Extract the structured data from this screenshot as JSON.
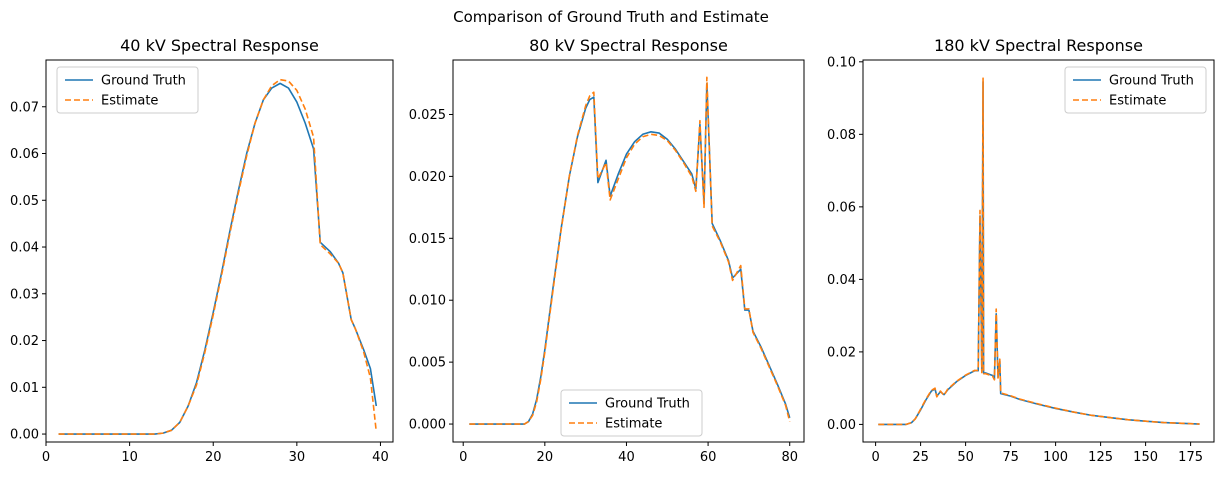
{
  "figure": {
    "suptitle": "Comparison of Ground Truth and Estimate"
  },
  "colors": {
    "ground_truth": "#1f77b4",
    "estimate": "#ff7f0e"
  },
  "chart_data": [
    {
      "type": "line",
      "title": "40 kV Spectral Response",
      "xlabel": "",
      "ylabel": "",
      "xlim": [
        0,
        41.5
      ],
      "ylim": [
        -0.0017,
        0.08
      ],
      "xticks": [
        0,
        10,
        20,
        30,
        40
      ],
      "yticks": [
        0.0,
        0.01,
        0.02,
        0.03,
        0.04,
        0.05,
        0.06,
        0.07
      ],
      "ytick_labels": [
        "0.00",
        "0.01",
        "0.02",
        "0.03",
        "0.04",
        "0.05",
        "0.06",
        "0.07"
      ],
      "grid": false,
      "legend": {
        "position": "top-left",
        "entries": [
          "Ground Truth",
          "Estimate"
        ]
      },
      "series": [
        {
          "name": "Ground Truth",
          "style": "solid",
          "points": [
            [
              1.5,
              0
            ],
            [
              5,
              0
            ],
            [
              10,
              0
            ],
            [
              13,
              0
            ],
            [
              14,
              0.0002
            ],
            [
              15,
              0.0008
            ],
            [
              16,
              0.0025
            ],
            [
              17,
              0.006
            ],
            [
              18,
              0.011
            ],
            [
              19,
              0.018
            ],
            [
              20,
              0.026
            ],
            [
              21,
              0.0345
            ],
            [
              22,
              0.0435
            ],
            [
              23,
              0.052
            ],
            [
              24,
              0.06
            ],
            [
              25,
              0.0665
            ],
            [
              26,
              0.0715
            ],
            [
              27,
              0.074
            ],
            [
              28,
              0.075
            ],
            [
              29,
              0.074
            ],
            [
              30,
              0.071
            ],
            [
              31,
              0.0665
            ],
            [
              32,
              0.061
            ],
            [
              32.8,
              0.041
            ],
            [
              34,
              0.039
            ],
            [
              35,
              0.0365
            ],
            [
              35.5,
              0.0345
            ],
            [
              36.5,
              0.0245
            ],
            [
              37,
              0.0225
            ],
            [
              38,
              0.018
            ],
            [
              38.8,
              0.014
            ],
            [
              39.5,
              0.006
            ]
          ]
        },
        {
          "name": "Estimate",
          "style": "dashed",
          "points": [
            [
              1.5,
              0
            ],
            [
              5,
              0
            ],
            [
              10,
              0
            ],
            [
              13,
              0
            ],
            [
              14,
              0.0002
            ],
            [
              15,
              0.0008
            ],
            [
              16,
              0.0025
            ],
            [
              17,
              0.006
            ],
            [
              18,
              0.0105
            ],
            [
              19,
              0.0175
            ],
            [
              20,
              0.0255
            ],
            [
              21,
              0.034
            ],
            [
              22,
              0.043
            ],
            [
              23,
              0.0515
            ],
            [
              24,
              0.0595
            ],
            [
              25,
              0.0665
            ],
            [
              26,
              0.0715
            ],
            [
              27,
              0.0745
            ],
            [
              28,
              0.0758
            ],
            [
              29,
              0.0755
            ],
            [
              30,
              0.0735
            ],
            [
              31,
              0.0695
            ],
            [
              32,
              0.0635
            ],
            [
              32.8,
              0.0405
            ],
            [
              34,
              0.0385
            ],
            [
              35,
              0.0365
            ],
            [
              35.5,
              0.0345
            ],
            [
              36.5,
              0.0245
            ],
            [
              37,
              0.0225
            ],
            [
              38,
              0.0175
            ],
            [
              38.8,
              0.012
            ],
            [
              39.5,
              0.0005
            ]
          ]
        }
      ]
    },
    {
      "type": "line",
      "title": "80 kV Spectral Response",
      "xlabel": "",
      "ylabel": "",
      "xlim": [
        -2.5,
        83.5
      ],
      "ylim": [
        -0.00145,
        0.0294
      ],
      "xticks": [
        0,
        20,
        40,
        60,
        80
      ],
      "yticks": [
        0.0,
        0.005,
        0.01,
        0.015,
        0.02,
        0.025
      ],
      "ytick_labels": [
        "0.000",
        "0.005",
        "0.010",
        "0.015",
        "0.020",
        "0.025"
      ],
      "grid": false,
      "legend": {
        "position": "bottom-center",
        "entries": [
          "Ground Truth",
          "Estimate"
        ]
      },
      "series": [
        {
          "name": "Ground Truth",
          "style": "solid",
          "points": [
            [
              1.5,
              0
            ],
            [
              10,
              0
            ],
            [
              15,
              0
            ],
            [
              16,
              0.0002
            ],
            [
              17,
              0.0008
            ],
            [
              18,
              0.002
            ],
            [
              19,
              0.0038
            ],
            [
              20,
              0.006
            ],
            [
              22,
              0.011
            ],
            [
              24,
              0.0158
            ],
            [
              26,
              0.02
            ],
            [
              28,
              0.0232
            ],
            [
              30,
              0.0255
            ],
            [
              31,
              0.0262
            ],
            [
              32,
              0.0264
            ],
            [
              33,
              0.0195
            ],
            [
              35,
              0.0213
            ],
            [
              36,
              0.0184
            ],
            [
              38,
              0.0202
            ],
            [
              40,
              0.0218
            ],
            [
              42,
              0.0228
            ],
            [
              44,
              0.0234
            ],
            [
              46,
              0.0236
            ],
            [
              48,
              0.0235
            ],
            [
              50,
              0.023
            ],
            [
              52,
              0.0222
            ],
            [
              54,
              0.0212
            ],
            [
              56,
              0.0202
            ],
            [
              57,
              0.019
            ],
            [
              58,
              0.0242
            ],
            [
              59,
              0.0178
            ],
            [
              59.7,
              0.0275
            ],
            [
              61,
              0.0162
            ],
            [
              63,
              0.0148
            ],
            [
              65,
              0.0132
            ],
            [
              66,
              0.0118
            ],
            [
              68,
              0.0125
            ],
            [
              69,
              0.0092
            ],
            [
              70,
              0.0092
            ],
            [
              71,
              0.0075
            ],
            [
              73,
              0.0062
            ],
            [
              75,
              0.0047
            ],
            [
              77,
              0.0032
            ],
            [
              79,
              0.0016
            ],
            [
              80,
              0.0005
            ]
          ]
        },
        {
          "name": "Estimate",
          "style": "dashed",
          "points": [
            [
              1.5,
              0
            ],
            [
              10,
              0
            ],
            [
              15,
              0
            ],
            [
              16,
              0.0002
            ],
            [
              17,
              0.0007
            ],
            [
              18,
              0.0018
            ],
            [
              19,
              0.0036
            ],
            [
              20,
              0.0058
            ],
            [
              22,
              0.0108
            ],
            [
              24,
              0.0157
            ],
            [
              26,
              0.02
            ],
            [
              28,
              0.0233
            ],
            [
              30,
              0.0257
            ],
            [
              31,
              0.0265
            ],
            [
              32,
              0.0268
            ],
            [
              33,
              0.0198
            ],
            [
              35,
              0.0211
            ],
            [
              36,
              0.0181
            ],
            [
              38,
              0.0198
            ],
            [
              40,
              0.0215
            ],
            [
              42,
              0.0226
            ],
            [
              44,
              0.0232
            ],
            [
              46,
              0.0234
            ],
            [
              48,
              0.0233
            ],
            [
              50,
              0.0229
            ],
            [
              52,
              0.0221
            ],
            [
              54,
              0.0211
            ],
            [
              56,
              0.02
            ],
            [
              57,
              0.0188
            ],
            [
              58,
              0.0245
            ],
            [
              59,
              0.0175
            ],
            [
              59.7,
              0.028
            ],
            [
              61,
              0.016
            ],
            [
              63,
              0.0147
            ],
            [
              65,
              0.0131
            ],
            [
              66,
              0.0116
            ],
            [
              68,
              0.0128
            ],
            [
              69,
              0.0093
            ],
            [
              70,
              0.0093
            ],
            [
              71,
              0.0074
            ],
            [
              73,
              0.0061
            ],
            [
              75,
              0.0046
            ],
            [
              77,
              0.0031
            ],
            [
              79,
              0.0015
            ],
            [
              80,
              0.0002
            ]
          ]
        }
      ]
    },
    {
      "type": "line",
      "title": "180 kV Spectral Response",
      "xlabel": "",
      "ylabel": "",
      "xlim": [
        -7,
        188
      ],
      "ylim": [
        -0.00485,
        0.1005
      ],
      "xticks": [
        0,
        25,
        50,
        75,
        100,
        125,
        150,
        175
      ],
      "yticks": [
        0.0,
        0.02,
        0.04,
        0.06,
        0.08,
        0.1
      ],
      "ytick_labels": [
        "0.00",
        "0.02",
        "0.04",
        "0.06",
        "0.08",
        "0.10"
      ],
      "grid": false,
      "legend": {
        "position": "top-right",
        "entries": [
          "Ground Truth",
          "Estimate"
        ]
      },
      "series": [
        {
          "name": "Ground Truth",
          "style": "solid",
          "points": [
            [
              1.5,
              0
            ],
            [
              10,
              0
            ],
            [
              17,
              0
            ],
            [
              20,
              0.0005
            ],
            [
              22,
              0.0015
            ],
            [
              25,
              0.004
            ],
            [
              28,
              0.0068
            ],
            [
              31,
              0.0092
            ],
            [
              33,
              0.0098
            ],
            [
              34,
              0.0078
            ],
            [
              36,
              0.009
            ],
            [
              38,
              0.0082
            ],
            [
              40,
              0.0095
            ],
            [
              45,
              0.0118
            ],
            [
              50,
              0.0135
            ],
            [
              55,
              0.0148
            ],
            [
              57,
              0.0148
            ],
            [
              58,
              0.0575
            ],
            [
              59,
              0.0145
            ],
            [
              59.7,
              0.0945
            ],
            [
              60,
              0.0142
            ],
            [
              61,
              0.0142
            ],
            [
              65,
              0.0135
            ],
            [
              66,
              0.0125
            ],
            [
              67,
              0.0305
            ],
            [
              68,
              0.013
            ],
            [
              69,
              0.0175
            ],
            [
              69.5,
              0.0085
            ],
            [
              75,
              0.0078
            ],
            [
              80,
              0.0069
            ],
            [
              90,
              0.0056
            ],
            [
              100,
              0.0044
            ],
            [
              110,
              0.0034
            ],
            [
              120,
              0.0025
            ],
            [
              130,
              0.0019
            ],
            [
              140,
              0.0013
            ],
            [
              150,
              0.0009
            ],
            [
              160,
              0.0005
            ],
            [
              170,
              0.0003
            ],
            [
              180,
              0.0001
            ]
          ]
        },
        {
          "name": "Estimate",
          "style": "dashed",
          "points": [
            [
              1.5,
              0
            ],
            [
              10,
              0
            ],
            [
              17,
              0
            ],
            [
              20,
              0.0005
            ],
            [
              22,
              0.0015
            ],
            [
              25,
              0.0042
            ],
            [
              28,
              0.007
            ],
            [
              31,
              0.0094
            ],
            [
              33,
              0.01
            ],
            [
              34,
              0.0076
            ],
            [
              36,
              0.0092
            ],
            [
              38,
              0.008
            ],
            [
              40,
              0.0097
            ],
            [
              45,
              0.0119
            ],
            [
              50,
              0.0136
            ],
            [
              55,
              0.0149
            ],
            [
              57,
              0.0149
            ],
            [
              58,
              0.059
            ],
            [
              59,
              0.0143
            ],
            [
              59.7,
              0.0955
            ],
            [
              60,
              0.014
            ],
            [
              61,
              0.014
            ],
            [
              65,
              0.0133
            ],
            [
              66,
              0.0123
            ],
            [
              67,
              0.0318
            ],
            [
              68,
              0.0128
            ],
            [
              69,
              0.018
            ],
            [
              69.5,
              0.0087
            ],
            [
              75,
              0.0079
            ],
            [
              80,
              0.007
            ],
            [
              90,
              0.0057
            ],
            [
              100,
              0.0045
            ],
            [
              110,
              0.0034
            ],
            [
              120,
              0.0025
            ],
            [
              130,
              0.0019
            ],
            [
              140,
              0.0013
            ],
            [
              150,
              0.0009
            ],
            [
              160,
              0.0005
            ],
            [
              170,
              0.0003
            ],
            [
              180,
              0.0001
            ]
          ]
        }
      ]
    }
  ]
}
